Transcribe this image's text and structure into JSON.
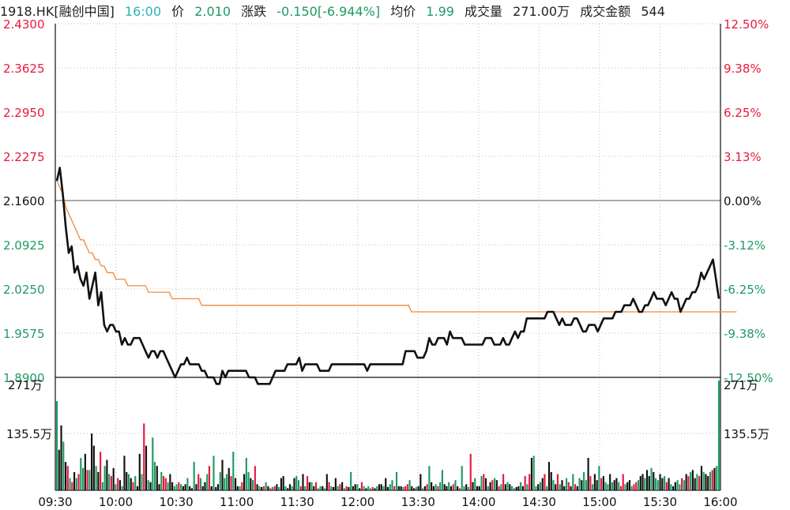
{
  "header": {
    "symbol": "1918.HK[融创中国]",
    "time": "16:00",
    "price_label": "价",
    "price": "2.010",
    "change_label": "涨跌",
    "change": "-0.150[-6.944%]",
    "avg_label": "均价",
    "avg": "1.99",
    "volume_label": "成交量",
    "volume": "271.00万",
    "amount_label": "成交金额",
    "amount": "544"
  },
  "colors": {
    "up": "#e8193c",
    "down": "#1f9a62",
    "neutral": "#111111",
    "price_line": "#111111",
    "avg_line": "#f0893a",
    "grid": "#bbbbbb"
  },
  "chart_data": {
    "type": "line",
    "x_labels": [
      "09:30",
      "10:00",
      "10:30",
      "11:00",
      "11:30",
      "12:00",
      "13:30",
      "14:00",
      "14:30",
      "15:00",
      "15:30",
      "16:00"
    ],
    "y_price_ticks": [
      "2.4300",
      "2.3625",
      "2.2950",
      "2.2275",
      "2.1600",
      "2.0925",
      "2.0250",
      "1.9575",
      "1.8900"
    ],
    "y_pct_ticks": [
      "12.50%",
      "9.38%",
      "6.25%",
      "3.13%",
      "0.00%",
      "-3.12%",
      "-6.25%",
      "-9.38%",
      "-12.50%"
    ],
    "ylim": [
      1.89,
      2.43
    ],
    "prev_close": 2.16,
    "series": [
      {
        "role": "price",
        "values": [
          2.19,
          2.21,
          2.17,
          2.12,
          2.08,
          2.09,
          2.05,
          2.06,
          2.04,
          2.03,
          2.05,
          2.01,
          2.03,
          2.05,
          2.0,
          2.02,
          1.97,
          1.96,
          1.97,
          1.97,
          1.96,
          1.96,
          1.94,
          1.95,
          1.94,
          1.94,
          1.95,
          1.95,
          1.95,
          1.94,
          1.93,
          1.92,
          1.93,
          1.93,
          1.92,
          1.93,
          1.93,
          1.92,
          1.91,
          1.9,
          1.89,
          1.9,
          1.91,
          1.91,
          1.92,
          1.91,
          1.91,
          1.91,
          1.91,
          1.9,
          1.9,
          1.89,
          1.89,
          1.89,
          1.88,
          1.88,
          1.9,
          1.89,
          1.9,
          1.9,
          1.9,
          1.9,
          1.9,
          1.9,
          1.9,
          1.89,
          1.89,
          1.89,
          1.88,
          1.88,
          1.88,
          1.88,
          1.88,
          1.89,
          1.9,
          1.9,
          1.9,
          1.9,
          1.91,
          1.91,
          1.91,
          1.91,
          1.92,
          1.9,
          1.91,
          1.91,
          1.91,
          1.91,
          1.91,
          1.9,
          1.9,
          1.9,
          1.9,
          1.91,
          1.91,
          1.91,
          1.91,
          1.91,
          1.91,
          1.91,
          1.91,
          1.91,
          1.91,
          1.91,
          1.91,
          1.9,
          1.91,
          1.91,
          1.91,
          1.91,
          1.91,
          1.91,
          1.91,
          1.91,
          1.91,
          1.91,
          1.91,
          1.91,
          1.93,
          1.93,
          1.93,
          1.93,
          1.92,
          1.92,
          1.92,
          1.93,
          1.95,
          1.94,
          1.94,
          1.95,
          1.95,
          1.95,
          1.94,
          1.96,
          1.95,
          1.95,
          1.95,
          1.95,
          1.94,
          1.94,
          1.94,
          1.94,
          1.94,
          1.94,
          1.94,
          1.95,
          1.95,
          1.95,
          1.94,
          1.94,
          1.94,
          1.95,
          1.94,
          1.94,
          1.95,
          1.96,
          1.95,
          1.96,
          1.96,
          1.98,
          1.98,
          1.98,
          1.98,
          1.98,
          1.98,
          1.98,
          1.99,
          1.99,
          1.99,
          1.98,
          1.97,
          1.98,
          1.97,
          1.97,
          1.97,
          1.98,
          1.98,
          1.97,
          1.96,
          1.96,
          1.97,
          1.97,
          1.97,
          1.96,
          1.97,
          1.98,
          1.98,
          1.98,
          1.98,
          1.99,
          1.99,
          1.99,
          2.0,
          2.0,
          2.0,
          2.01,
          2.0,
          1.99,
          1.99,
          2.0,
          2.0,
          2.01,
          2.02,
          2.01,
          2.01,
          2.01,
          2.0,
          2.01,
          2.02,
          2.01,
          2.01,
          1.99,
          2.0,
          2.01,
          2.01,
          2.02,
          2.02,
          2.03,
          2.05,
          2.04,
          2.05,
          2.06,
          2.07,
          2.04,
          2.01
        ]
      },
      {
        "role": "avg",
        "values": [
          2.19,
          2.18,
          2.17,
          2.15,
          2.14,
          2.13,
          2.12,
          2.11,
          2.1,
          2.1,
          2.09,
          2.08,
          2.08,
          2.07,
          2.07,
          2.06,
          2.06,
          2.05,
          2.05,
          2.05,
          2.04,
          2.04,
          2.04,
          2.04,
          2.03,
          2.03,
          2.03,
          2.03,
          2.03,
          2.03,
          2.03,
          2.02,
          2.02,
          2.02,
          2.02,
          2.02,
          2.02,
          2.02,
          2.02,
          2.01,
          2.01,
          2.01,
          2.01,
          2.01,
          2.01,
          2.01,
          2.01,
          2.01,
          2.01,
          2.0,
          2.0,
          2.0,
          2.0,
          2.0,
          2.0,
          2.0,
          2.0,
          2.0,
          2.0,
          2.0,
          2.0,
          2.0,
          2.0,
          2.0,
          2.0,
          2.0,
          2.0,
          2.0,
          2.0,
          2.0,
          2.0,
          2.0,
          2.0,
          2.0,
          2.0,
          2.0,
          2.0,
          2.0,
          2.0,
          2.0,
          2.0,
          2.0,
          2.0,
          2.0,
          2.0,
          2.0,
          2.0,
          2.0,
          2.0,
          2.0,
          2.0,
          2.0,
          2.0,
          2.0,
          2.0,
          2.0,
          2.0,
          2.0,
          2.0,
          2.0,
          2.0,
          2.0,
          2.0,
          2.0,
          2.0,
          2.0,
          2.0,
          2.0,
          2.0,
          2.0,
          2.0,
          2.0,
          2.0,
          2.0,
          2.0,
          2.0,
          2.0,
          2.0,
          2.0,
          2.0,
          1.99,
          1.99,
          1.99,
          1.99,
          1.99,
          1.99,
          1.99,
          1.99,
          1.99,
          1.99,
          1.99,
          1.99,
          1.99,
          1.99,
          1.99,
          1.99,
          1.99,
          1.99,
          1.99,
          1.99,
          1.99,
          1.99,
          1.99,
          1.99,
          1.99,
          1.99,
          1.99,
          1.99,
          1.99,
          1.99,
          1.99,
          1.99,
          1.99,
          1.99,
          1.99,
          1.99,
          1.99,
          1.99,
          1.99,
          1.99,
          1.99,
          1.99,
          1.99,
          1.99,
          1.99,
          1.99,
          1.99,
          1.99,
          1.99,
          1.99,
          1.99,
          1.99,
          1.99,
          1.99,
          1.99,
          1.99,
          1.99,
          1.99,
          1.99,
          1.99,
          1.99,
          1.99,
          1.99,
          1.99,
          1.99,
          1.99,
          1.99,
          1.99,
          1.99,
          1.99,
          1.99,
          1.99,
          1.99,
          1.99,
          1.99,
          1.99,
          1.99,
          1.99,
          1.99,
          1.99,
          1.99,
          1.99,
          1.99,
          1.99,
          1.99,
          1.99,
          1.99,
          1.99,
          1.99,
          1.99,
          1.99,
          1.99,
          1.99,
          1.99,
          1.99,
          1.99,
          1.99,
          1.99,
          1.99,
          1.99,
          1.99,
          1.99,
          1.99,
          1.99,
          1.99,
          1.99,
          1.99,
          1.99,
          1.99,
          1.99,
          1.99
        ]
      }
    ],
    "volume": {
      "max_label": "271万",
      "mid_label": "135.5万",
      "max": 271,
      "values": [
        220,
        100,
        160,
        120,
        70,
        60,
        30,
        20,
        45,
        30,
        40,
        80,
        55,
        90,
        50,
        50,
        140,
        110,
        60,
        45,
        95,
        20,
        60,
        75,
        40,
        35,
        55,
        15,
        30,
        25,
        10,
        85,
        45,
        40,
        30,
        20,
        35,
        10,
        90,
        40,
        165,
        110,
        25,
        20,
        130,
        70,
        60,
        15,
        45,
        35,
        30,
        20,
        40,
        20,
        10,
        15,
        20,
        15,
        10,
        15,
        30,
        10,
        5,
        70,
        15,
        40,
        30,
        10,
        20,
        40,
        60,
        10,
        85,
        8,
        15,
        45,
        75,
        30,
        40,
        55,
        35,
        95,
        30,
        10,
        10,
        20,
        40,
        80,
        45,
        30,
        25,
        60,
        15,
        10,
        8,
        10,
        20,
        10,
        5,
        8,
        10,
        15,
        8,
        30,
        35,
        10,
        5,
        15,
        10,
        30,
        35,
        25,
        10,
        40,
        10,
        35,
        20,
        20,
        10,
        20,
        5,
        10,
        10,
        5,
        40,
        20,
        10,
        8,
        30,
        10,
        15,
        20,
        5,
        10,
        8,
        45,
        10,
        15,
        15,
        5,
        20,
        10,
        5,
        10,
        5,
        8,
        5,
        10,
        15,
        15,
        10,
        30,
        8,
        15,
        25,
        10,
        45,
        10,
        10,
        8,
        10,
        15,
        25,
        10,
        5,
        8,
        10,
        40,
        5,
        10,
        15,
        60,
        20,
        10,
        15,
        10,
        20,
        50,
        15,
        10,
        20,
        10,
        15,
        25,
        10,
        5,
        60,
        10,
        15,
        8,
        90,
        20,
        30,
        10,
        10,
        35,
        40,
        30,
        10,
        20,
        25,
        30,
        25,
        10,
        15,
        40,
        15,
        20,
        15,
        10,
        5,
        8,
        10,
        20,
        10,
        35,
        15,
        40,
        80,
        85,
        10,
        15,
        20,
        30,
        40,
        10,
        70,
        45,
        25,
        15,
        40,
        15,
        25,
        10,
        30,
        20,
        10,
        40,
        15,
        10,
        30,
        25,
        45,
        25,
        80,
        35,
        15,
        40,
        25,
        60,
        30,
        35,
        20,
        15,
        40,
        20,
        25,
        30,
        20,
        10,
        40,
        15,
        20,
        25,
        10,
        15,
        20,
        25,
        35,
        40,
        30,
        50,
        35,
        55,
        45,
        30,
        25,
        40,
        30,
        35,
        20,
        30,
        15,
        10,
        20,
        25,
        15,
        30,
        25,
        40,
        35,
        45,
        50,
        30,
        40,
        35,
        60,
        45,
        40,
        35,
        45,
        50,
        55,
        60,
        271
      ]
    }
  }
}
